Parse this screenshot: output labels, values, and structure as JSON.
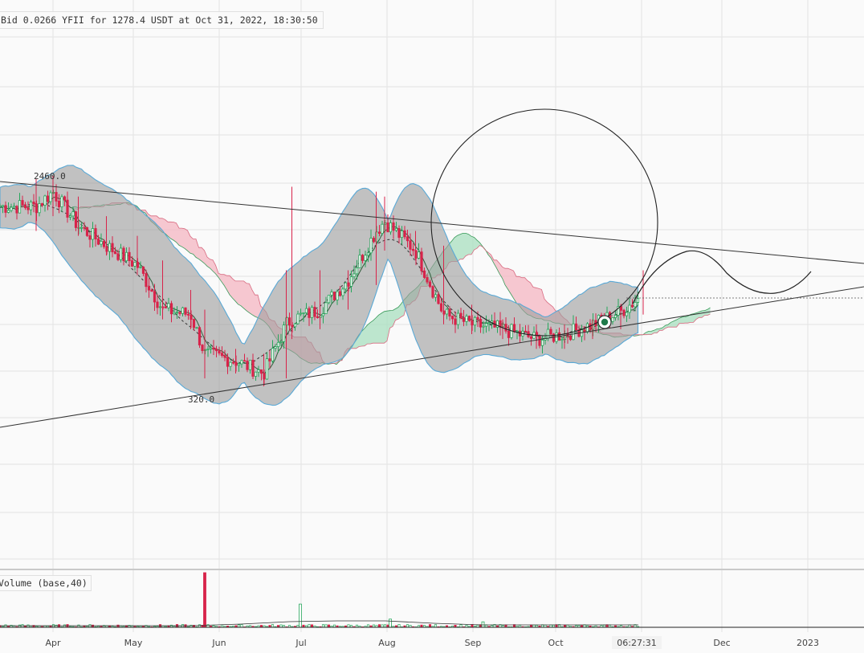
{
  "trade_label": "Bid 0.0266 YFII for 1278.4 USDT at Oct 31, 2022, 18:30:50",
  "volume_label": "Volume (base,40)",
  "annotations": {
    "high": "2460.0",
    "low": "320.0"
  },
  "time_marker": "06:27:31",
  "x_axis_labels": [
    "Apr",
    "May",
    "Jun",
    "Jul",
    "Aug",
    "Sep",
    "Oct",
    "Dec",
    "2023"
  ],
  "colors": {
    "up": "#26a65b",
    "down": "#d8234a",
    "band_fill": "#9e9e9e",
    "band_edge": "#5aa9d6",
    "cloud_bear": "#f4b6c2",
    "cloud_bull": "#a8dfbf"
  },
  "chart_data": {
    "type": "candlestick",
    "title": "",
    "xlabel": "",
    "ylabel": "",
    "x_range": [
      "2022-03-20",
      "2023-01-20"
    ],
    "y_range": [
      -1100,
      2600
    ],
    "grid": true,
    "ohlc": [
      {
        "date": "2022-03-26",
        "high": 2430,
        "low": 1900,
        "close": 2150
      },
      {
        "date": "2022-04-01",
        "high": 2460,
        "low": 2050,
        "close": 2300
      },
      {
        "date": "2022-04-10",
        "high": 2250,
        "low": 1850,
        "close": 1950
      },
      {
        "date": "2022-04-20",
        "high": 2050,
        "low": 1650,
        "close": 1750
      },
      {
        "date": "2022-05-01",
        "high": 1850,
        "low": 1450,
        "close": 1550
      },
      {
        "date": "2022-05-10",
        "high": 1600,
        "low": 1000,
        "close": 1100
      },
      {
        "date": "2022-05-20",
        "high": 1300,
        "low": 900,
        "close": 1050
      },
      {
        "date": "2022-05-25",
        "high": 1100,
        "low": 400,
        "close": 650
      },
      {
        "date": "2022-06-05",
        "high": 700,
        "low": 450,
        "close": 580
      },
      {
        "date": "2022-06-15",
        "high": 650,
        "low": 320,
        "close": 450
      },
      {
        "date": "2022-06-23",
        "high": 1500,
        "low": 400,
        "close": 950
      },
      {
        "date": "2022-06-25",
        "high": 2350,
        "low": 800,
        "close": 1000
      },
      {
        "date": "2022-07-05",
        "high": 1500,
        "low": 900,
        "close": 1100
      },
      {
        "date": "2022-07-15",
        "high": 1500,
        "low": 1100,
        "close": 1400
      },
      {
        "date": "2022-07-25",
        "high": 2300,
        "low": 1350,
        "close": 1900
      },
      {
        "date": "2022-07-28",
        "high": 2250,
        "low": 1700,
        "close": 2000
      },
      {
        "date": "2022-08-08",
        "high": 1900,
        "low": 1600,
        "close": 1700
      },
      {
        "date": "2022-08-18",
        "high": 1750,
        "low": 950,
        "close": 1050
      },
      {
        "date": "2022-08-28",
        "high": 1150,
        "low": 850,
        "close": 950
      },
      {
        "date": "2022-09-08",
        "high": 1000,
        "low": 800,
        "close": 900
      },
      {
        "date": "2022-09-20",
        "high": 950,
        "low": 700,
        "close": 800
      },
      {
        "date": "2022-09-30",
        "high": 950,
        "low": 700,
        "close": 850
      },
      {
        "date": "2022-10-10",
        "high": 1000,
        "low": 800,
        "close": 950
      },
      {
        "date": "2022-10-20",
        "high": 1150,
        "low": 900,
        "close": 1080
      },
      {
        "date": "2022-10-28",
        "high": 1500,
        "low": 1050,
        "close": 1250
      }
    ],
    "volume": [
      {
        "date": "2022-05-25",
        "value": 40
      },
      {
        "date": "2022-06-28",
        "value": 17
      },
      {
        "date": "2022-07-30",
        "value": 6
      },
      {
        "date": "2022-09-01",
        "value": 4
      }
    ]
  }
}
